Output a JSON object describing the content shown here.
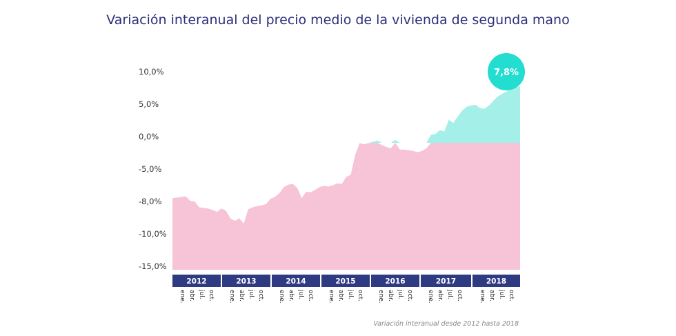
{
  "chart_data": {
    "type": "area",
    "title": "Variación interanual del precio medio de la vivienda de segunda mano",
    "caption": "Variación interanual desde 2012 hasta 2018",
    "y_ticks": [
      "10,0%",
      "5,0%",
      "0,0%",
      "-5,0%",
      "-8,0%",
      "-10,0%",
      "-15,0%"
    ],
    "years": [
      "2012",
      "2013",
      "2014",
      "2015",
      "2016",
      "2017",
      "2018"
    ],
    "months": [
      "ene.",
      "abr.",
      "jul.",
      "oct."
    ],
    "highlight": {
      "label": "7,8%",
      "value": 7.8
    },
    "colors": {
      "negative": "#f7c3d6",
      "positive": "#a5efe9",
      "badge": "#22ddd0",
      "year_band": "#2e3a82",
      "title": "#2b2f7a"
    },
    "series": [
      {
        "values": [
          -9.5,
          -9.4,
          -9.3,
          -9.2,
          -9.9,
          -10.0,
          -10.9,
          -11.0,
          -11.1,
          -11.3,
          -11.6,
          -11.1,
          -11.4,
          -12.6,
          -13.0,
          -12.6,
          -13.4,
          -11.2,
          -10.9,
          -10.7,
          -10.6,
          -10.4,
          -9.6,
          -9.3,
          -8.7,
          -7.8,
          -7.4,
          -7.3,
          -7.9,
          -9.5,
          -8.5,
          -8.6,
          -8.2,
          -7.8,
          -7.6,
          -7.7,
          -7.5,
          -7.2,
          -7.3,
          -6.2,
          -5.9,
          -2.8,
          -1.0,
          -1.2,
          -1.0,
          -0.8,
          -0.6,
          -1.3,
          -1.6,
          -1.8,
          -0.5,
          -2.0,
          -2.0,
          -2.1,
          -2.2,
          -2.4,
          -2.2,
          -1.8,
          0.3,
          0.4,
          1.0,
          0.8,
          2.6,
          2.1,
          3.1,
          4.0,
          4.6,
          4.8,
          4.9,
          4.4,
          4.3,
          4.8,
          5.5,
          6.2,
          6.6,
          7.0,
          7.3,
          7.6,
          7.8
        ]
      }
    ]
  }
}
